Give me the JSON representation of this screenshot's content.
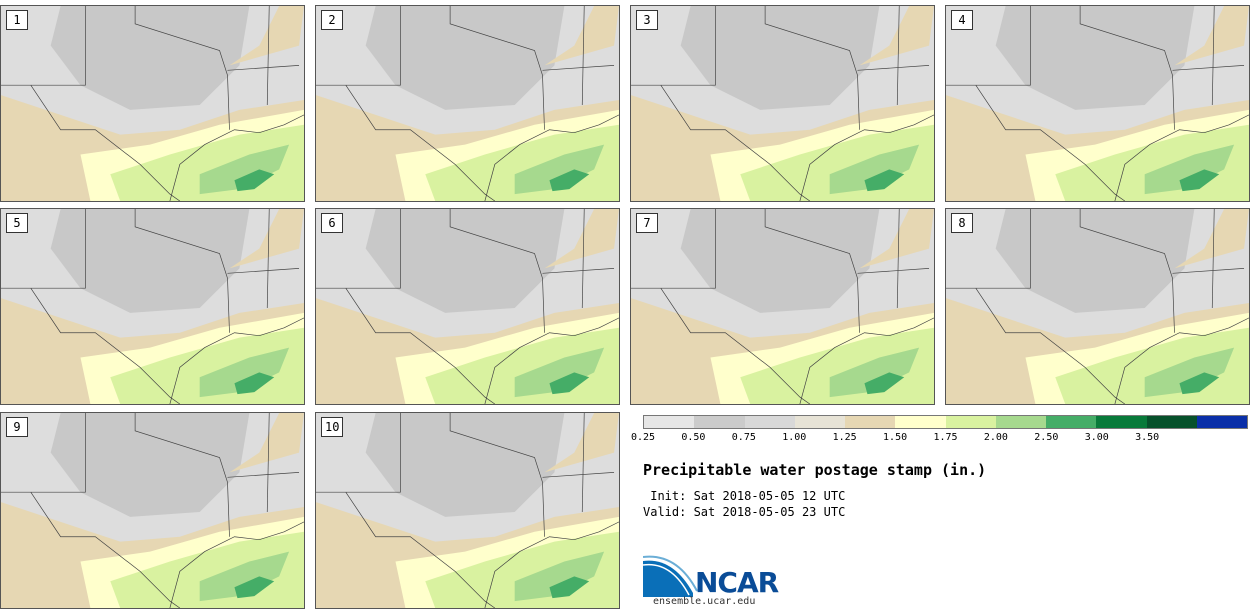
{
  "figure": {
    "title": "Precipitable water postage stamp (in.)",
    "init_line": " Init: Sat 2018-05-05 12 UTC",
    "valid_line": "Valid: Sat 2018-05-05 23 UTC"
  },
  "panels": [
    {
      "label": "1"
    },
    {
      "label": "2"
    },
    {
      "label": "3"
    },
    {
      "label": "4"
    },
    {
      "label": "5"
    },
    {
      "label": "6"
    },
    {
      "label": "7"
    },
    {
      "label": "8"
    },
    {
      "label": "9"
    },
    {
      "label": "10"
    }
  ],
  "colorbar": {
    "ticks": [
      "0.25",
      "0.50",
      "0.75",
      "1.00",
      "1.25",
      "1.50",
      "1.75",
      "2.00",
      "2.50",
      "3.00",
      "3.50"
    ],
    "colors": [
      "#e6e6e6",
      "#cbcbcb",
      "#d8d8d8",
      "#e7e3d6",
      "#e6d7b3",
      "#ffffcc",
      "#d9f2a0",
      "#a6d98e",
      "#45ad67",
      "#087a3a",
      "#06512b",
      "#0a2fa8"
    ]
  },
  "map_colors": {
    "land_light": "#dddddd",
    "land_gray": "#c8c8c8",
    "tan": "#e6d7b3",
    "cream": "#ffffcc",
    "light_green": "#d9f2a0",
    "green": "#a6d98e",
    "dark_green": "#45ad67"
  },
  "logo": {
    "text": "NCAR",
    "url": "ensemble.ucar.edu"
  }
}
